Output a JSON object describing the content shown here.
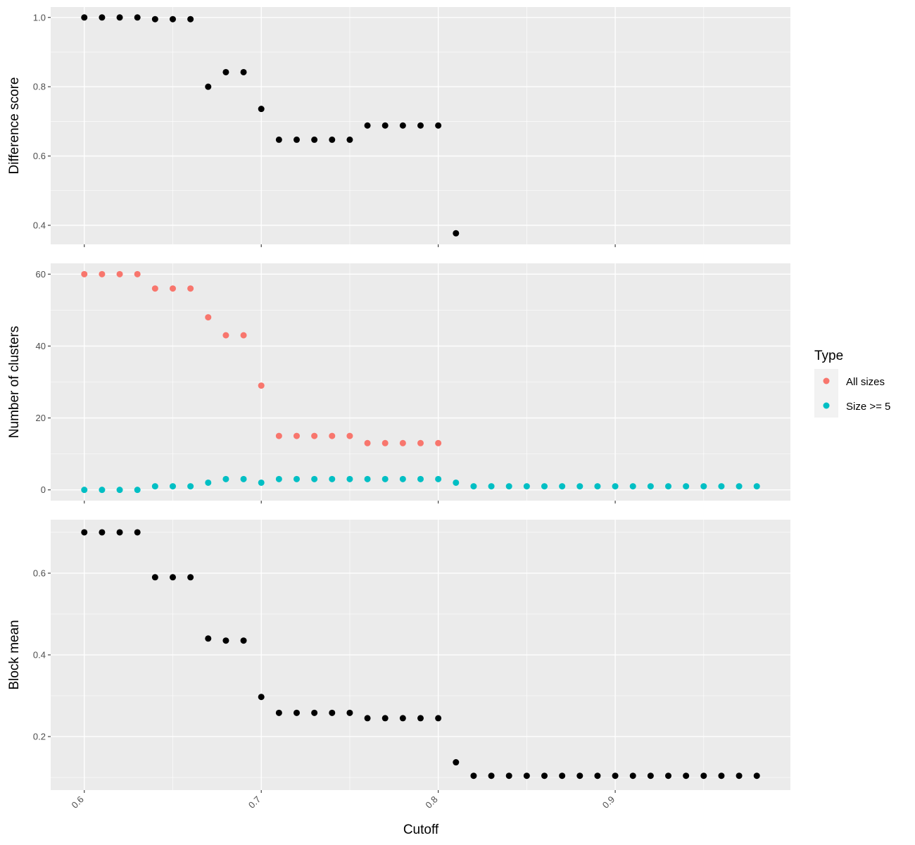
{
  "chart_data": [
    {
      "type": "scatter",
      "ylabel": "Difference score",
      "ylim": [
        0.345,
        1.03
      ],
      "yticks": [
        0.4,
        0.6,
        0.8,
        1.0
      ],
      "ytick_labels": [
        "0.4",
        "0.6",
        "0.8",
        "1.0"
      ],
      "series": [
        {
          "color": "#000000",
          "x": [
            0.6,
            0.61,
            0.62,
            0.63,
            0.64,
            0.65,
            0.66,
            0.67,
            0.68,
            0.69,
            0.7,
            0.71,
            0.72,
            0.73,
            0.74,
            0.75,
            0.76,
            0.77,
            0.78,
            0.79,
            0.8,
            0.81
          ],
          "y": [
            1.0,
            1.0,
            1.0,
            1.0,
            0.995,
            0.995,
            0.995,
            0.8,
            0.842,
            0.842,
            0.736,
            0.647,
            0.647,
            0.647,
            0.647,
            0.647,
            0.688,
            0.688,
            0.688,
            0.688,
            0.688,
            0.377
          ]
        }
      ]
    },
    {
      "type": "scatter",
      "ylabel": "Number of clusters",
      "ylim": [
        -3,
        63
      ],
      "yticks": [
        0,
        20,
        40,
        60
      ],
      "ytick_labels": [
        "0",
        "20",
        "40",
        "60"
      ],
      "legend": {
        "title": "Type",
        "placement": "right"
      },
      "series": [
        {
          "name": "All sizes",
          "color": "#F8766D",
          "x": [
            0.6,
            0.61,
            0.62,
            0.63,
            0.64,
            0.65,
            0.66,
            0.67,
            0.68,
            0.69,
            0.7,
            0.71,
            0.72,
            0.73,
            0.74,
            0.75,
            0.76,
            0.77,
            0.78,
            0.79,
            0.8
          ],
          "y": [
            60,
            60,
            60,
            60,
            56,
            56,
            56,
            48,
            43,
            43,
            29,
            15,
            15,
            15,
            15,
            15,
            13,
            13,
            13,
            13,
            13
          ]
        },
        {
          "name": "Size >= 5",
          "color": "#00BFC4",
          "x": [
            0.6,
            0.61,
            0.62,
            0.63,
            0.64,
            0.65,
            0.66,
            0.67,
            0.68,
            0.69,
            0.7,
            0.71,
            0.72,
            0.73,
            0.74,
            0.75,
            0.76,
            0.77,
            0.78,
            0.79,
            0.8,
            0.81,
            0.82,
            0.83,
            0.84,
            0.85,
            0.86,
            0.87,
            0.88,
            0.89,
            0.9,
            0.91,
            0.92,
            0.93,
            0.94,
            0.95,
            0.96,
            0.97,
            0.98
          ],
          "y": [
            0,
            0,
            0,
            0,
            1,
            1,
            1,
            2,
            3,
            3,
            2,
            3,
            3,
            3,
            3,
            3,
            3,
            3,
            3,
            3,
            3,
            2,
            1,
            1,
            1,
            1,
            1,
            1,
            1,
            1,
            1,
            1,
            1,
            1,
            1,
            1,
            1,
            1,
            1
          ]
        }
      ]
    },
    {
      "type": "scatter",
      "ylabel": "Block mean",
      "ylim": [
        0.069,
        0.731
      ],
      "yticks": [
        0.2,
        0.4,
        0.6
      ],
      "ytick_labels": [
        "0.2",
        "0.4",
        "0.6"
      ],
      "series": [
        {
          "color": "#000000",
          "x": [
            0.6,
            0.61,
            0.62,
            0.63,
            0.64,
            0.65,
            0.66,
            0.67,
            0.68,
            0.69,
            0.7,
            0.71,
            0.72,
            0.73,
            0.74,
            0.75,
            0.76,
            0.77,
            0.78,
            0.79,
            0.8,
            0.81,
            0.82,
            0.83,
            0.84,
            0.85,
            0.86,
            0.87,
            0.88,
            0.89,
            0.9,
            0.91,
            0.92,
            0.93,
            0.94,
            0.95,
            0.96,
            0.97,
            0.98
          ],
          "y": [
            0.7,
            0.7,
            0.7,
            0.7,
            0.59,
            0.59,
            0.59,
            0.44,
            0.435,
            0.435,
            0.297,
            0.258,
            0.258,
            0.258,
            0.258,
            0.258,
            0.245,
            0.245,
            0.245,
            0.245,
            0.245,
            0.137,
            0.104,
            0.104,
            0.104,
            0.104,
            0.104,
            0.104,
            0.104,
            0.104,
            0.104,
            0.104,
            0.104,
            0.104,
            0.104,
            0.104,
            0.104,
            0.104,
            0.104
          ]
        }
      ]
    }
  ],
  "shared_x": {
    "label": "Cutoff",
    "xlim": [
      0.581,
      0.999
    ],
    "ticks": [
      0.6,
      0.7,
      0.8,
      0.9
    ],
    "tick_labels": [
      "0.6",
      "0.7",
      "0.8",
      "0.9"
    ]
  },
  "style": {
    "panel_background": "#EBEBEB",
    "grid_color": "#FFFFFF",
    "tick_color": "#333333"
  }
}
